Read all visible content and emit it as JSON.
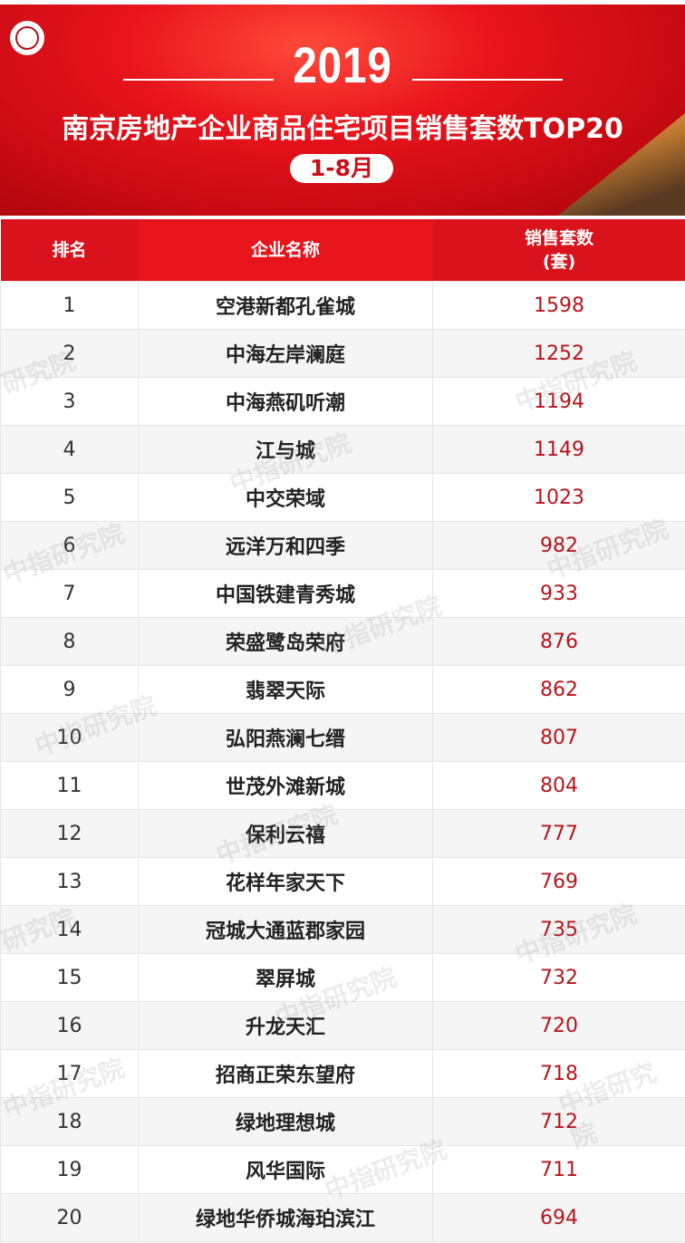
{
  "banner": {
    "year": "2019",
    "title": "南京房地产企业商品住宅项目销售套数TOP20",
    "period": "1-8月",
    "colors": {
      "primary": "#d9121b",
      "value_text": "#b8141b"
    },
    "logo": "中指研究院 logo"
  },
  "watermark": "中指研究院",
  "chart_data": {
    "type": "table",
    "title": "南京房地产企业商品住宅项目销售套数TOP20",
    "columns": [
      "排名",
      "企业名称",
      "销售套数",
      "(套)"
    ],
    "rows": [
      {
        "rank": "1",
        "name": "空港新都孔雀城",
        "value": "1598"
      },
      {
        "rank": "2",
        "name": "中海左岸澜庭",
        "value": "1252"
      },
      {
        "rank": "3",
        "name": "中海燕矶听潮",
        "value": "1194"
      },
      {
        "rank": "4",
        "name": "江与城",
        "value": "1149"
      },
      {
        "rank": "5",
        "name": "中交荣域",
        "value": "1023"
      },
      {
        "rank": "6",
        "name": "远洋万和四季",
        "value": "982"
      },
      {
        "rank": "7",
        "name": "中国铁建青秀城",
        "value": "933"
      },
      {
        "rank": "8",
        "name": "荣盛鹭岛荣府",
        "value": "876"
      },
      {
        "rank": "9",
        "name": "翡翠天际",
        "value": "862"
      },
      {
        "rank": "10",
        "name": "弘阳燕澜七缙",
        "value": "807"
      },
      {
        "rank": "11",
        "name": "世茂外滩新城",
        "value": "804"
      },
      {
        "rank": "12",
        "name": "保利云禧",
        "value": "777"
      },
      {
        "rank": "13",
        "name": "花样年家天下",
        "value": "769"
      },
      {
        "rank": "14",
        "name": "冠城大通蓝郡家园",
        "value": "735"
      },
      {
        "rank": "15",
        "name": "翠屏城",
        "value": "732"
      },
      {
        "rank": "16",
        "name": "升龙天汇",
        "value": "720"
      },
      {
        "rank": "17",
        "name": "招商正荣东望府",
        "value": "718"
      },
      {
        "rank": "18",
        "name": "绿地理想城",
        "value": "712"
      },
      {
        "rank": "19",
        "name": "风华国际",
        "value": "711"
      },
      {
        "rank": "20",
        "name": "绿地华侨城海珀滨江",
        "value": "694"
      }
    ]
  }
}
